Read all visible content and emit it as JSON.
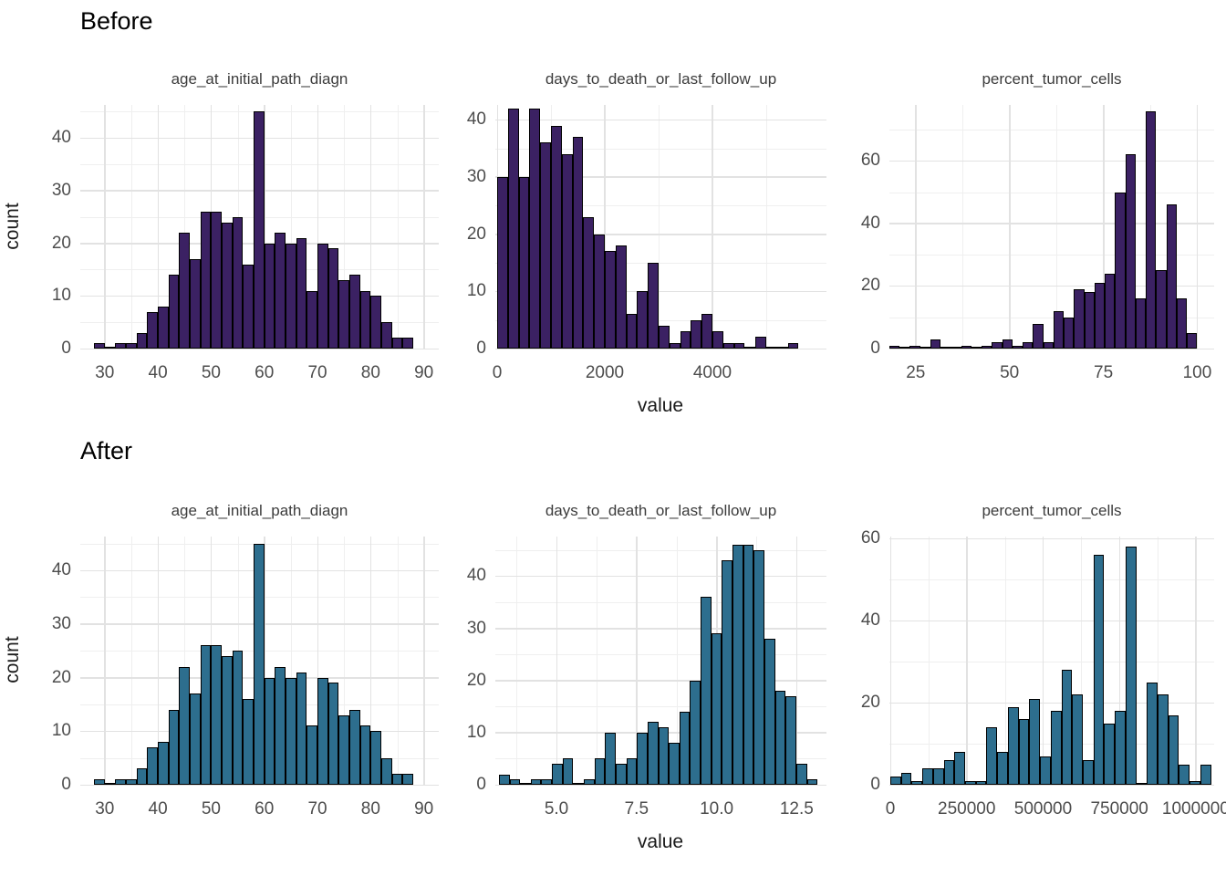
{
  "headings": {
    "before": "Before",
    "after": "After"
  },
  "axis": {
    "y_label": "count",
    "x_label": "value"
  },
  "colors": {
    "background": "#ffffff",
    "before_fill": "#3B2163",
    "after_fill": "#2D6E8E",
    "bar_outline": "#000000",
    "grid_major": "#e2e2e2",
    "grid_minor": "#efefef",
    "tick_text": "#4d4d4d",
    "title_text": "#3c3c3c",
    "heading_text": "#000000"
  },
  "chart_data": {
    "type": "bar",
    "subtype": "faceted-histograms",
    "layout": "2 rows (Before, After) x 3 facet columns; y axis = count, shared x label = value; minimal theme with light gray major/minor gridlines",
    "rows": [
      {
        "heading": "Before",
        "fill": "#3B2163"
      },
      {
        "heading": "After",
        "fill": "#2D6E8E"
      }
    ],
    "panels": [
      {
        "row": "before",
        "title": "age_at_initial_path_diagn",
        "fill": "#3B2163",
        "bin_start": 28,
        "bin_width": 2,
        "counts": [
          1,
          0,
          1,
          1,
          3,
          7,
          8,
          14,
          22,
          17,
          26,
          26,
          24,
          25,
          16,
          45,
          20,
          22,
          20,
          21,
          11,
          20,
          19,
          13,
          14,
          11,
          10,
          5,
          2,
          2
        ],
        "x_range": [
          25.4,
          92.8
        ],
        "x_major": [
          {
            "v": 30,
            "label": "30"
          },
          {
            "v": 40,
            "label": "40"
          },
          {
            "v": 50,
            "label": "50"
          },
          {
            "v": 60,
            "label": "60"
          },
          {
            "v": 70,
            "label": "70"
          },
          {
            "v": 80,
            "label": "80"
          },
          {
            "v": 90,
            "label": "90"
          }
        ],
        "x_minor": [
          35,
          45,
          55,
          65,
          75,
          85
        ],
        "y_max": 46.3,
        "y_major": [
          {
            "v": 0,
            "label": "0"
          },
          {
            "v": 10,
            "label": "10"
          },
          {
            "v": 20,
            "label": "20"
          },
          {
            "v": 30,
            "label": "30"
          },
          {
            "v": 40,
            "label": "40"
          }
        ],
        "y_minor": [
          5,
          15,
          25,
          35,
          45
        ]
      },
      {
        "row": "before",
        "title": "days_to_death_or_last_follow_up",
        "fill": "#3B2163",
        "bin_start": 0,
        "bin_width": 200,
        "counts": [
          30,
          42,
          30,
          42,
          36,
          39,
          34,
          37,
          23,
          20,
          17,
          18,
          6,
          10,
          15,
          4,
          1,
          3,
          5,
          6,
          3,
          1,
          1,
          0,
          2,
          0,
          0,
          1
        ],
        "x_range": [
          -34,
          6119
        ],
        "x_major": [
          {
            "v": 0,
            "label": "0"
          },
          {
            "v": 2000,
            "label": "2000"
          },
          {
            "v": 4000,
            "label": "4000"
          }
        ],
        "x_minor": [
          1000,
          3000,
          5000
        ],
        "y_max": 42.6,
        "y_major": [
          {
            "v": 0,
            "label": "0"
          },
          {
            "v": 10,
            "label": "10"
          },
          {
            "v": 20,
            "label": "20"
          },
          {
            "v": 30,
            "label": "30"
          },
          {
            "v": 40,
            "label": "40"
          }
        ],
        "y_minor": [
          5,
          15,
          25,
          35
        ]
      },
      {
        "row": "before",
        "title": "percent_tumor_cells",
        "fill": "#3B2163",
        "bin_start": 18,
        "bin_width": 2.7333,
        "counts": [
          1,
          0,
          1,
          0,
          3,
          0,
          0,
          1,
          0,
          1,
          2,
          3,
          1,
          2,
          8,
          2,
          12,
          10,
          19,
          18,
          21,
          24,
          50,
          62,
          16,
          76,
          25,
          46,
          16,
          5
        ],
        "x_range": [
          18,
          104.5
        ],
        "x_major": [
          {
            "v": 25,
            "label": "25"
          },
          {
            "v": 50,
            "label": "50"
          },
          {
            "v": 75,
            "label": "75"
          },
          {
            "v": 100,
            "label": "100"
          }
        ],
        "x_minor": [
          37.5,
          62.5,
          87.5
        ],
        "y_max": 77.9,
        "y_major": [
          {
            "v": 0,
            "label": "0"
          },
          {
            "v": 20,
            "label": "20"
          },
          {
            "v": 40,
            "label": "40"
          },
          {
            "v": 60,
            "label": "60"
          }
        ],
        "y_minor": [
          10,
          30,
          50,
          70
        ]
      },
      {
        "row": "after",
        "title": "age_at_initial_path_diagn",
        "fill": "#2D6E8E",
        "bin_start": 28,
        "bin_width": 2,
        "counts": [
          1,
          0,
          1,
          1,
          3,
          7,
          8,
          14,
          22,
          17,
          26,
          26,
          24,
          25,
          16,
          45,
          20,
          22,
          20,
          21,
          11,
          20,
          19,
          13,
          14,
          11,
          10,
          5,
          2,
          2
        ],
        "x_range": [
          25.4,
          92.8
        ],
        "x_major": [
          {
            "v": 30,
            "label": "30"
          },
          {
            "v": 40,
            "label": "40"
          },
          {
            "v": 50,
            "label": "50"
          },
          {
            "v": 60,
            "label": "60"
          },
          {
            "v": 70,
            "label": "70"
          },
          {
            "v": 80,
            "label": "80"
          },
          {
            "v": 90,
            "label": "90"
          }
        ],
        "x_minor": [
          35,
          45,
          55,
          65,
          75,
          85
        ],
        "y_max": 46.3,
        "y_major": [
          {
            "v": 0,
            "label": "0"
          },
          {
            "v": 10,
            "label": "10"
          },
          {
            "v": 20,
            "label": "20"
          },
          {
            "v": 30,
            "label": "30"
          },
          {
            "v": 40,
            "label": "40"
          }
        ],
        "y_minor": [
          5,
          15,
          25,
          35,
          45
        ]
      },
      {
        "row": "after",
        "title": "days_to_death_or_last_follow_up",
        "fill": "#2D6E8E",
        "bin_start": 3.2,
        "bin_width": 0.3317,
        "counts": [
          2,
          1,
          0,
          1,
          1,
          4,
          5,
          0,
          1,
          5,
          10,
          4,
          5,
          10,
          12,
          11,
          8,
          14,
          20,
          36,
          29,
          43,
          46,
          46,
          45,
          28,
          18,
          17,
          4,
          1
        ],
        "x_range": [
          3.09,
          13.43
        ],
        "x_major": [
          {
            "v": 5,
            "label": "5.0"
          },
          {
            "v": 7.5,
            "label": "7.5"
          },
          {
            "v": 10,
            "label": "10.0"
          },
          {
            "v": 12.5,
            "label": "12.5"
          }
        ],
        "x_minor": [
          3.75,
          6.25,
          8.75,
          11.25
        ],
        "y_max": 47.6,
        "y_major": [
          {
            "v": 0,
            "label": "0"
          },
          {
            "v": 10,
            "label": "10"
          },
          {
            "v": 20,
            "label": "20"
          },
          {
            "v": 30,
            "label": "30"
          },
          {
            "v": 40,
            "label": "40"
          }
        ],
        "y_minor": [
          5,
          15,
          25,
          35,
          45
        ]
      },
      {
        "row": "after",
        "title": "percent_tumor_cells",
        "fill": "#2D6E8E",
        "bin_start": 0,
        "bin_width": 35000,
        "counts": [
          2,
          3,
          1,
          4,
          4,
          6,
          8,
          1,
          1,
          14,
          8,
          19,
          16,
          21,
          7,
          18,
          28,
          22,
          6,
          56,
          15,
          18,
          58,
          0,
          25,
          22,
          17,
          5,
          1,
          5
        ],
        "x_range": [
          -3000,
          1060000
        ],
        "x_major": [
          {
            "v": 0,
            "label": "0"
          },
          {
            "v": 250000,
            "label": "250000"
          },
          {
            "v": 500000,
            "label": "500000"
          },
          {
            "v": 750000,
            "label": "750000"
          },
          {
            "v": 1000000,
            "label": "1000000"
          }
        ],
        "x_minor": [
          125000,
          375000,
          625000,
          875000
        ],
        "y_max": 60.5,
        "y_major": [
          {
            "v": 0,
            "label": "0"
          },
          {
            "v": 20,
            "label": "20"
          },
          {
            "v": 40,
            "label": "40"
          },
          {
            "v": 60,
            "label": "60"
          }
        ],
        "y_minor": [
          10,
          30,
          50
        ]
      }
    ]
  }
}
